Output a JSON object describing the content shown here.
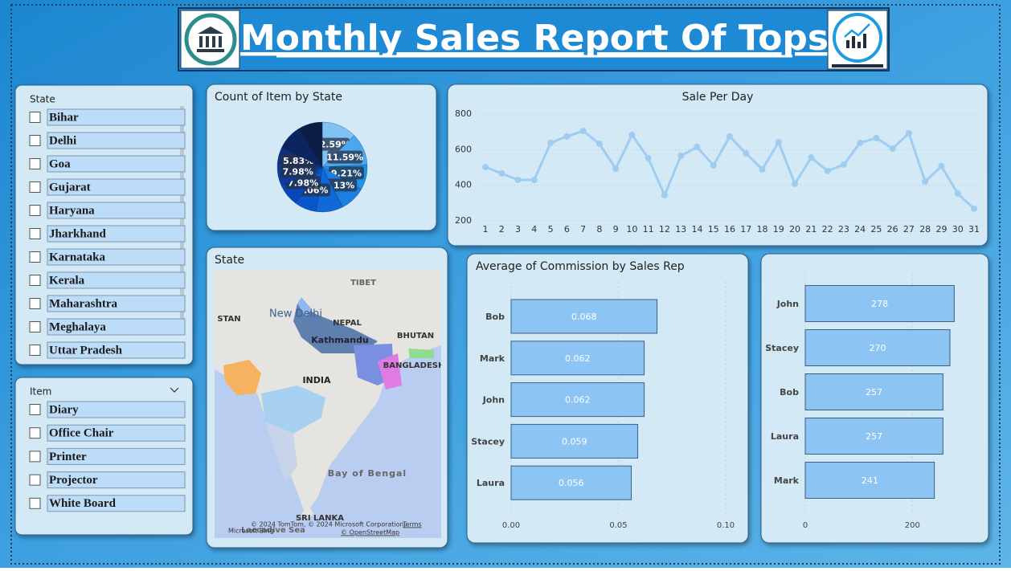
{
  "header": {
    "title": "Monthly Sales Report Of Tops"
  },
  "slicers": [
    {
      "title": "State",
      "items": [
        "Bihar",
        "Delhi",
        "Goa",
        "Gujarat",
        "Haryana",
        "Jharkhand",
        "Karnataka",
        "Kerala",
        "Maharashtra",
        "Meghalaya",
        "Uttar Pradesh"
      ]
    },
    {
      "title": "Item",
      "items": [
        "Diary",
        "Office Chair",
        "Printer",
        "Projector",
        "White Board"
      ]
    }
  ],
  "map": {
    "title": "State",
    "labels": [
      "TIBET",
      "New Delhi",
      "NEPAL",
      "Kathmandu",
      "BHUTAN",
      "INDIA",
      "BANGLADESH",
      "Bay of Bengal",
      "SRI LANKA",
      "Laccadive Sea",
      "STAN"
    ],
    "attribution": [
      "© 2024 TomTom, © 2024 Microsoft Corporation,",
      "Terms",
      "© OpenStreetMap",
      "Microsoft Bing"
    ]
  },
  "chart_data": [
    {
      "type": "pie",
      "title": "Count of Item by State",
      "values": [
        12.59,
        11.59,
        9.21,
        9.13,
        9.6,
        8.06,
        7.98,
        7.98,
        5.83,
        9.0,
        9.03
      ],
      "value_labels": [
        "12.59%",
        "11.59%",
        "9.21%",
        "9.13%",
        null,
        "8.06%",
        "7.98%",
        "7.98%",
        "5.83%",
        null,
        null
      ],
      "colors": [
        "#7fc2f5",
        "#4aa8f0",
        "#1f93ea",
        "#1a7fe0",
        "#0f6ad8",
        "#0a56cc",
        "#0a46b8",
        "#0b3aa0",
        "#0d2f80",
        "#0c2560",
        "#0a1e46"
      ]
    },
    {
      "type": "line",
      "title": "Sale Per Day",
      "x": [
        1,
        2,
        3,
        4,
        5,
        6,
        7,
        8,
        9,
        10,
        11,
        12,
        13,
        14,
        15,
        16,
        17,
        18,
        19,
        20,
        21,
        22,
        23,
        24,
        25,
        26,
        27,
        28,
        29,
        30,
        31
      ],
      "values": [
        502,
        466,
        430,
        430,
        638,
        674,
        705,
        633,
        493,
        683,
        552,
        344,
        565,
        615,
        511,
        674,
        579,
        489,
        642,
        408,
        556,
        480,
        516,
        638,
        665,
        606,
        692,
        421,
        507,
        353,
        268
      ],
      "ylim": [
        200,
        800
      ],
      "yticks": [
        200,
        400,
        600,
        800
      ],
      "color": "#9fcdf2",
      "grid": true
    },
    {
      "type": "hbar",
      "title": "Average of Commission by Sales Rep",
      "categories": [
        "Bob",
        "Mark",
        "John",
        "Stacey",
        "Laura"
      ],
      "values": [
        0.068,
        0.062,
        0.062,
        0.059,
        0.056
      ],
      "xlim": [
        0,
        0.1
      ],
      "xticks": [
        {
          "value": 0,
          "label": "0.00"
        },
        0.05,
        {
          "value": 0.1,
          "label": "0.10"
        }
      ],
      "color": "#8cc5f3",
      "grid": true
    },
    {
      "type": "hbar",
      "categories": [
        "John",
        "Stacey",
        "Bob",
        "Laura",
        "Mark"
      ],
      "values": [
        278,
        270,
        257,
        257,
        241
      ],
      "xlim": [
        0,
        300
      ],
      "xticks": [
        0,
        200
      ],
      "color": "#8cc5f3",
      "grid": true
    }
  ]
}
